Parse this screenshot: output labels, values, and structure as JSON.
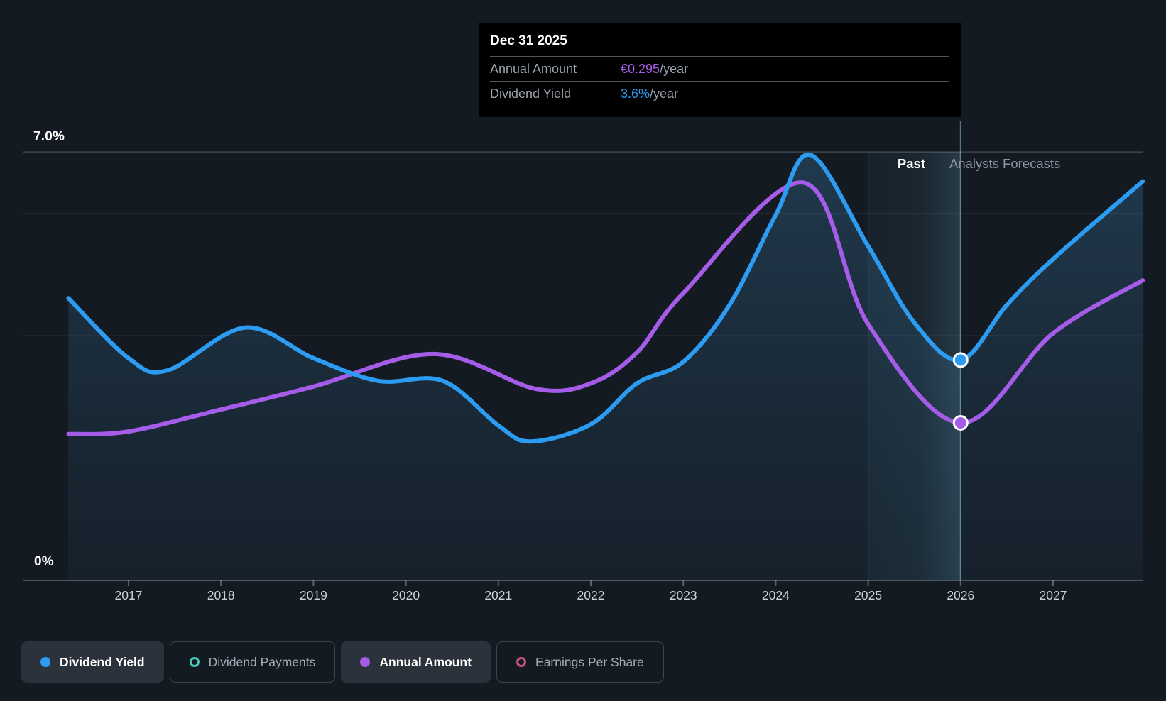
{
  "tooltip": {
    "date": "Dec 31 2025",
    "rows": [
      {
        "label": "Annual Amount",
        "value": "€0.295",
        "suffix": "/year",
        "color": "#a55ce8"
      },
      {
        "label": "Dividend Yield",
        "value": "3.6%",
        "suffix": "/year",
        "color": "#2b9cf2"
      }
    ]
  },
  "axes": {
    "y_top": "7.0%",
    "y_bottom": "0%",
    "x_ticks": [
      "2017",
      "2018",
      "2019",
      "2020",
      "2021",
      "2022",
      "2023",
      "2024",
      "2025",
      "2026",
      "2027"
    ]
  },
  "annotations": {
    "past": "Past",
    "forecast": "Analysts Forecasts"
  },
  "legend": {
    "items": [
      {
        "label": "Dividend Yield",
        "color": "#2b9cf2",
        "active": true,
        "marker": "filled"
      },
      {
        "label": "Dividend Payments",
        "color": "#43c9b7",
        "active": false,
        "marker": "ring"
      },
      {
        "label": "Annual Amount",
        "color": "#a55ce8",
        "active": true,
        "marker": "filled"
      },
      {
        "label": "Earnings Per Share",
        "color": "#c75480",
        "active": false,
        "marker": "ring"
      }
    ]
  },
  "chart_data": {
    "type": "line",
    "x_range": [
      2016.35,
      2028.0
    ],
    "x_ticks": [
      2017,
      2018,
      2019,
      2020,
      2021,
      2022,
      2023,
      2024,
      2025,
      2026,
      2027
    ],
    "y_axis_left": {
      "unit": "%",
      "range": [
        0,
        7.0
      ],
      "top_label": "7.0%",
      "bottom_label": "0%",
      "gridlines_pct": [
        2,
        4,
        6
      ],
      "labeled_line_pct": 7.0
    },
    "y_axis_right": {
      "unit": "EUR per share",
      "range": [
        0,
        0.803
      ],
      "visible": false
    },
    "divider": {
      "x": 2026.0,
      "past_label": "Past",
      "forecast_label": "Analysts Forecasts",
      "highlight_band": [
        2025.0,
        2026.0
      ]
    },
    "series": [
      {
        "name": "Dividend Yield",
        "unit": "%",
        "color": "#2b9cf2",
        "active": true,
        "points": [
          [
            2016.35,
            4.61
          ],
          [
            2017,
            3.63
          ],
          [
            2017.42,
            3.43
          ],
          [
            2018.26,
            4.13
          ],
          [
            2019,
            3.63
          ],
          [
            2019.7,
            3.26
          ],
          [
            2020.4,
            3.26
          ],
          [
            2021,
            2.53
          ],
          [
            2021.35,
            2.27
          ],
          [
            2022,
            2.55
          ],
          [
            2022.5,
            3.22
          ],
          [
            2023,
            3.57
          ],
          [
            2023.5,
            4.5
          ],
          [
            2024,
            5.97
          ],
          [
            2024.38,
            6.95
          ],
          [
            2025,
            5.46
          ],
          [
            2025.5,
            4.21
          ],
          [
            2026,
            3.6
          ],
          [
            2026.5,
            4.5
          ],
          [
            2027,
            5.25
          ],
          [
            2027.97,
            6.52
          ]
        ]
      },
      {
        "name": "Annual Amount",
        "unit": "EUR",
        "color": "#a55ce8",
        "active": true,
        "points": [
          [
            2016.35,
            0.274
          ],
          [
            2017,
            0.279
          ],
          [
            2018,
            0.32
          ],
          [
            2019,
            0.363
          ],
          [
            2020.3,
            0.424
          ],
          [
            2021.4,
            0.359
          ],
          [
            2022,
            0.369
          ],
          [
            2022.5,
            0.427
          ],
          [
            2023,
            0.538
          ],
          [
            2024.3,
            0.745
          ],
          [
            2025,
            0.48
          ],
          [
            2026,
            0.295
          ],
          [
            2027,
            0.463
          ],
          [
            2027.97,
            0.562
          ]
        ]
      },
      {
        "name": "Dividend Payments",
        "color": "#43c9b7",
        "active": false,
        "points": []
      },
      {
        "name": "Earnings Per Share",
        "color": "#c75480",
        "active": false,
        "points": []
      }
    ],
    "highlight_point": {
      "x": 2026.0,
      "dividend_yield_pct": 3.6,
      "annual_amount_eur": 0.295
    }
  }
}
